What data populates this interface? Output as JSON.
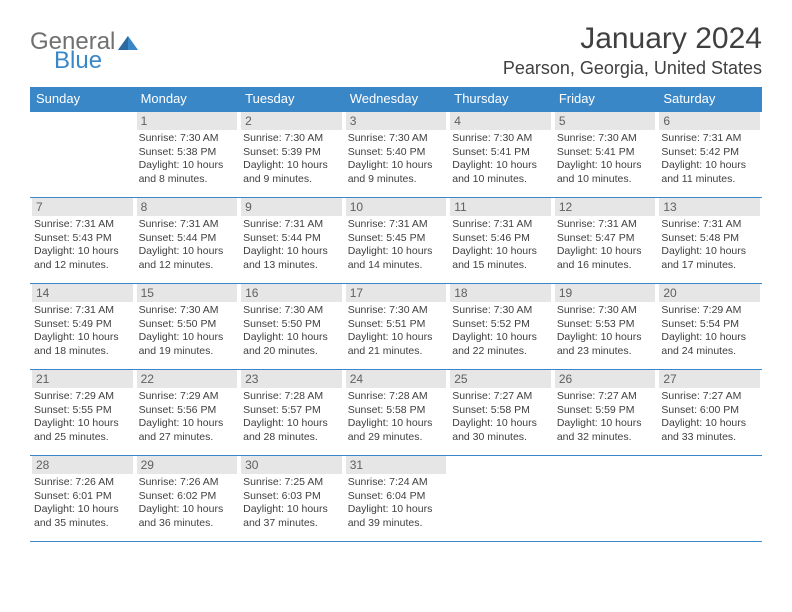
{
  "logo": {
    "text1": "General",
    "text2": "Blue"
  },
  "title": "January 2024",
  "location": "Pearson, Georgia, United States",
  "header_bg": "#3a87c8",
  "row_border": "#3a87c8",
  "daynum_bg": "#e6e6e6",
  "weekdays": [
    "Sunday",
    "Monday",
    "Tuesday",
    "Wednesday",
    "Thursday",
    "Friday",
    "Saturday"
  ],
  "weeks": [
    [
      null,
      {
        "d": "1",
        "s": "Sunrise: 7:30 AM",
        "t": "Sunset: 5:38 PM",
        "l": "Daylight: 10 hours and 8 minutes."
      },
      {
        "d": "2",
        "s": "Sunrise: 7:30 AM",
        "t": "Sunset: 5:39 PM",
        "l": "Daylight: 10 hours and 9 minutes."
      },
      {
        "d": "3",
        "s": "Sunrise: 7:30 AM",
        "t": "Sunset: 5:40 PM",
        "l": "Daylight: 10 hours and 9 minutes."
      },
      {
        "d": "4",
        "s": "Sunrise: 7:30 AM",
        "t": "Sunset: 5:41 PM",
        "l": "Daylight: 10 hours and 10 minutes."
      },
      {
        "d": "5",
        "s": "Sunrise: 7:30 AM",
        "t": "Sunset: 5:41 PM",
        "l": "Daylight: 10 hours and 10 minutes."
      },
      {
        "d": "6",
        "s": "Sunrise: 7:31 AM",
        "t": "Sunset: 5:42 PM",
        "l": "Daylight: 10 hours and 11 minutes."
      }
    ],
    [
      {
        "d": "7",
        "s": "Sunrise: 7:31 AM",
        "t": "Sunset: 5:43 PM",
        "l": "Daylight: 10 hours and 12 minutes."
      },
      {
        "d": "8",
        "s": "Sunrise: 7:31 AM",
        "t": "Sunset: 5:44 PM",
        "l": "Daylight: 10 hours and 12 minutes."
      },
      {
        "d": "9",
        "s": "Sunrise: 7:31 AM",
        "t": "Sunset: 5:44 PM",
        "l": "Daylight: 10 hours and 13 minutes."
      },
      {
        "d": "10",
        "s": "Sunrise: 7:31 AM",
        "t": "Sunset: 5:45 PM",
        "l": "Daylight: 10 hours and 14 minutes."
      },
      {
        "d": "11",
        "s": "Sunrise: 7:31 AM",
        "t": "Sunset: 5:46 PM",
        "l": "Daylight: 10 hours and 15 minutes."
      },
      {
        "d": "12",
        "s": "Sunrise: 7:31 AM",
        "t": "Sunset: 5:47 PM",
        "l": "Daylight: 10 hours and 16 minutes."
      },
      {
        "d": "13",
        "s": "Sunrise: 7:31 AM",
        "t": "Sunset: 5:48 PM",
        "l": "Daylight: 10 hours and 17 minutes."
      }
    ],
    [
      {
        "d": "14",
        "s": "Sunrise: 7:31 AM",
        "t": "Sunset: 5:49 PM",
        "l": "Daylight: 10 hours and 18 minutes."
      },
      {
        "d": "15",
        "s": "Sunrise: 7:30 AM",
        "t": "Sunset: 5:50 PM",
        "l": "Daylight: 10 hours and 19 minutes."
      },
      {
        "d": "16",
        "s": "Sunrise: 7:30 AM",
        "t": "Sunset: 5:50 PM",
        "l": "Daylight: 10 hours and 20 minutes."
      },
      {
        "d": "17",
        "s": "Sunrise: 7:30 AM",
        "t": "Sunset: 5:51 PM",
        "l": "Daylight: 10 hours and 21 minutes."
      },
      {
        "d": "18",
        "s": "Sunrise: 7:30 AM",
        "t": "Sunset: 5:52 PM",
        "l": "Daylight: 10 hours and 22 minutes."
      },
      {
        "d": "19",
        "s": "Sunrise: 7:30 AM",
        "t": "Sunset: 5:53 PM",
        "l": "Daylight: 10 hours and 23 minutes."
      },
      {
        "d": "20",
        "s": "Sunrise: 7:29 AM",
        "t": "Sunset: 5:54 PM",
        "l": "Daylight: 10 hours and 24 minutes."
      }
    ],
    [
      {
        "d": "21",
        "s": "Sunrise: 7:29 AM",
        "t": "Sunset: 5:55 PM",
        "l": "Daylight: 10 hours and 25 minutes."
      },
      {
        "d": "22",
        "s": "Sunrise: 7:29 AM",
        "t": "Sunset: 5:56 PM",
        "l": "Daylight: 10 hours and 27 minutes."
      },
      {
        "d": "23",
        "s": "Sunrise: 7:28 AM",
        "t": "Sunset: 5:57 PM",
        "l": "Daylight: 10 hours and 28 minutes."
      },
      {
        "d": "24",
        "s": "Sunrise: 7:28 AM",
        "t": "Sunset: 5:58 PM",
        "l": "Daylight: 10 hours and 29 minutes."
      },
      {
        "d": "25",
        "s": "Sunrise: 7:27 AM",
        "t": "Sunset: 5:58 PM",
        "l": "Daylight: 10 hours and 30 minutes."
      },
      {
        "d": "26",
        "s": "Sunrise: 7:27 AM",
        "t": "Sunset: 5:59 PM",
        "l": "Daylight: 10 hours and 32 minutes."
      },
      {
        "d": "27",
        "s": "Sunrise: 7:27 AM",
        "t": "Sunset: 6:00 PM",
        "l": "Daylight: 10 hours and 33 minutes."
      }
    ],
    [
      {
        "d": "28",
        "s": "Sunrise: 7:26 AM",
        "t": "Sunset: 6:01 PM",
        "l": "Daylight: 10 hours and 35 minutes."
      },
      {
        "d": "29",
        "s": "Sunrise: 7:26 AM",
        "t": "Sunset: 6:02 PM",
        "l": "Daylight: 10 hours and 36 minutes."
      },
      {
        "d": "30",
        "s": "Sunrise: 7:25 AM",
        "t": "Sunset: 6:03 PM",
        "l": "Daylight: 10 hours and 37 minutes."
      },
      {
        "d": "31",
        "s": "Sunrise: 7:24 AM",
        "t": "Sunset: 6:04 PM",
        "l": "Daylight: 10 hours and 39 minutes."
      },
      null,
      null,
      null
    ]
  ]
}
